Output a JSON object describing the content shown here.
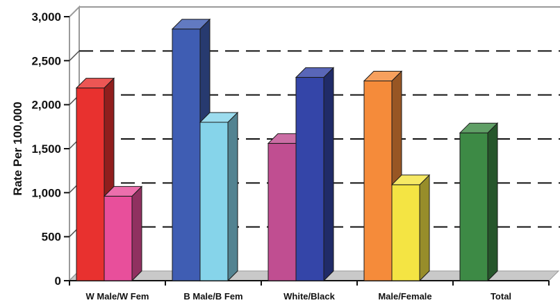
{
  "chart_data": {
    "type": "bar",
    "style": "3d-clustered",
    "title": "",
    "xlabel": "",
    "ylabel": "Rate Per 100,000",
    "ylim": [
      0,
      3000
    ],
    "yticks": [
      "0",
      "500",
      "1,000",
      "1,500",
      "2,000",
      "2,500",
      "3,000"
    ],
    "grid": "dashed horizontal",
    "legend": "none",
    "groups": [
      {
        "category": "W Male/W Fem",
        "bars": [
          {
            "value": 2190,
            "color": "#e8312f"
          },
          {
            "value": 960,
            "color": "#e84f9b"
          }
        ]
      },
      {
        "category": "B Male/B Fem",
        "bars": [
          {
            "value": 2860,
            "color": "#3f5db3"
          },
          {
            "value": 1800,
            "color": "#86d4ea"
          }
        ]
      },
      {
        "category": "White/Black",
        "bars": [
          {
            "value": 1560,
            "color": "#c04e91"
          },
          {
            "value": 2310,
            "color": "#3445a8"
          }
        ]
      },
      {
        "category": "Male/Female",
        "bars": [
          {
            "value": 2270,
            "color": "#f58b3a"
          },
          {
            "value": 1090,
            "color": "#f4e443"
          }
        ]
      },
      {
        "category": "Total",
        "bars": [
          {
            "value": 1680,
            "color": "#3d8a45"
          }
        ]
      }
    ]
  }
}
